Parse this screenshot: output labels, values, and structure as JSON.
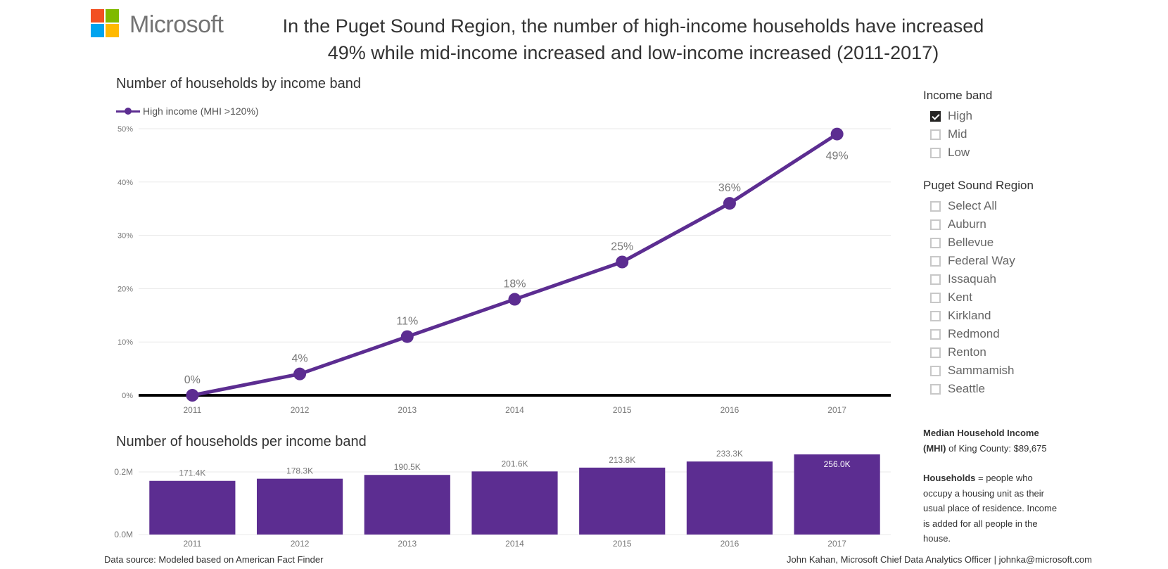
{
  "logo": {
    "text": "Microsoft",
    "squares": [
      "#f25022",
      "#7fba00",
      "#00a4ef",
      "#ffb900"
    ]
  },
  "headline": {
    "line1": "In the Puget Sound Region, the number of  high-income households have increased",
    "line2": "49% while mid-income increased  and low-income increased  (2011-2017)"
  },
  "colors": {
    "accent": "#5c2d91",
    "gridline": "#e8e8e8",
    "axis_text": "#777777",
    "label_text": "#777777"
  },
  "chart_data": [
    {
      "type": "line",
      "title": "Number of households by income band",
      "legend": {
        "entries": [
          "High income (MHI >120%)"
        ],
        "placement": "top-left"
      },
      "x": [
        "2011",
        "2012",
        "2013",
        "2014",
        "2015",
        "2016",
        "2017"
      ],
      "series": [
        {
          "name": "High income (MHI >120%)",
          "values": [
            0,
            4,
            11,
            18,
            25,
            36,
            49
          ],
          "labels": [
            "0%",
            "4%",
            "11%",
            "18%",
            "25%",
            "36%",
            "49%"
          ]
        }
      ],
      "yticks": [
        "0%",
        "10%",
        "20%",
        "30%",
        "40%",
        "50%"
      ],
      "ytick_values": [
        0,
        10,
        20,
        30,
        40,
        50
      ],
      "ylim": [
        0,
        50
      ],
      "xlabel": "",
      "ylabel": "",
      "grid": true
    },
    {
      "type": "bar",
      "title": "Number of households per income band",
      "categories": [
        "2011",
        "2012",
        "2013",
        "2014",
        "2015",
        "2016",
        "2017"
      ],
      "values": [
        171400,
        178300,
        190500,
        201600,
        213800,
        233300,
        256000
      ],
      "labels": [
        "171.4K",
        "178.3K",
        "190.5K",
        "201.6K",
        "213.8K",
        "233.3K",
        "256.0K"
      ],
      "yticks": [
        "0.0M",
        "0.2M"
      ],
      "ytick_values": [
        0,
        200000
      ],
      "ylim": [
        0,
        260000
      ],
      "xlabel": "",
      "ylabel": "",
      "grid": true
    }
  ],
  "slicers": {
    "income_band": {
      "title": "Income band",
      "items": [
        {
          "label": "High",
          "checked": true
        },
        {
          "label": "Mid",
          "checked": false
        },
        {
          "label": "Low",
          "checked": false
        }
      ]
    },
    "region": {
      "title": "Puget Sound Region",
      "items": [
        {
          "label": "Select All",
          "checked": false
        },
        {
          "label": "Auburn",
          "checked": false
        },
        {
          "label": "Bellevue",
          "checked": false
        },
        {
          "label": "Federal Way",
          "checked": false
        },
        {
          "label": "Issaquah",
          "checked": false
        },
        {
          "label": "Kent",
          "checked": false
        },
        {
          "label": "Kirkland",
          "checked": false
        },
        {
          "label": "Redmond",
          "checked": false
        },
        {
          "label": "Renton",
          "checked": false
        },
        {
          "label": "Sammamish",
          "checked": false
        },
        {
          "label": "Seattle",
          "checked": false
        }
      ]
    }
  },
  "notes": {
    "mhi_bold": "Median Household Income (MHI)",
    "mhi_rest": " of King County: $89,675",
    "households_bold": "Households",
    "households_rest": " = people who occupy a housing unit as their usual place of residence. Income is added for all people in the house."
  },
  "footer": {
    "source": "Data source: Modeled based on American Fact Finder",
    "credit": "John Kahan, Microsoft Chief Data Analytics Officer |  johnka@microsoft.com"
  }
}
